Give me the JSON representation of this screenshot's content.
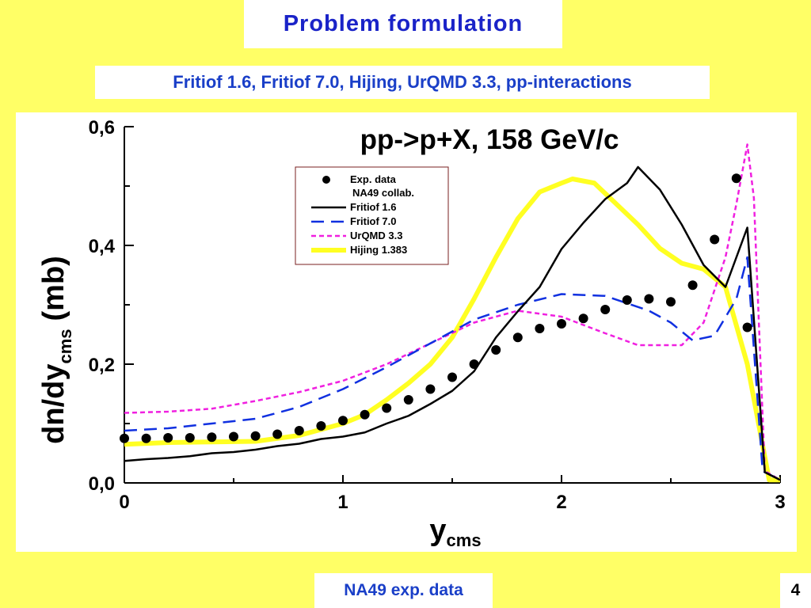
{
  "slide": {
    "title": "Problem formulation",
    "subtitle": "Fritiof 1.6, Fritiof 7.0, Hijing, UrQMD 3.3, pp-interactions",
    "footer": "NA49 exp. data",
    "page_number": "4",
    "colors": {
      "background": "#ffff66",
      "title_text": "#1a23c8",
      "panel": "#ffffff"
    }
  },
  "chart_data": {
    "type": "line",
    "title": "pp->p+X, 158 GeV/c",
    "ylabel_main": "dn/dy",
    "ylabel_sub": "cms",
    "ylabel_unit": "(mb)",
    "xlabel_main": "y",
    "xlabel_sub": "cms",
    "xlim": [
      0,
      3
    ],
    "ylim": [
      0,
      0.6
    ],
    "x_ticks": [
      0,
      1,
      2,
      3
    ],
    "x_tick_labels": [
      "0",
      "1",
      "2",
      "3"
    ],
    "y_ticks": [
      0,
      0.2,
      0.4,
      0.6
    ],
    "y_tick_labels": [
      "0,0",
      "0,2",
      "0,4",
      "0,6"
    ],
    "grid": false,
    "legend": {
      "placement": "top-left",
      "entries": [
        {
          "label": "Exp. data",
          "label2": "NA49 collab.",
          "style": "dots",
          "color": "#000000"
        },
        {
          "label": "Fritiof 1.6",
          "style": "solid",
          "color": "#000000"
        },
        {
          "label": "Fritiof 7.0",
          "style": "dash",
          "color": "#1030e0"
        },
        {
          "label": "UrQMD 3.3",
          "style": "dot",
          "color": "#f020e0"
        },
        {
          "label": "Hijing 1.383",
          "style": "thick",
          "color": "#ffff22"
        }
      ]
    },
    "scatter": {
      "name": "Exp. data",
      "points": [
        [
          0.0,
          0.075
        ],
        [
          0.1,
          0.075
        ],
        [
          0.2,
          0.076
        ],
        [
          0.3,
          0.076
        ],
        [
          0.4,
          0.077
        ],
        [
          0.5,
          0.078
        ],
        [
          0.6,
          0.079
        ],
        [
          0.7,
          0.082
        ],
        [
          0.8,
          0.088
        ],
        [
          0.9,
          0.096
        ],
        [
          1.0,
          0.105
        ],
        [
          1.1,
          0.115
        ],
        [
          1.2,
          0.126
        ],
        [
          1.3,
          0.14
        ],
        [
          1.4,
          0.158
        ],
        [
          1.5,
          0.178
        ],
        [
          1.6,
          0.2
        ],
        [
          1.7,
          0.224
        ],
        [
          1.8,
          0.245
        ],
        [
          1.9,
          0.26
        ],
        [
          2.0,
          0.268
        ],
        [
          2.1,
          0.277
        ],
        [
          2.2,
          0.292
        ],
        [
          2.3,
          0.308
        ],
        [
          2.4,
          0.31
        ],
        [
          2.5,
          0.305
        ],
        [
          2.6,
          0.333
        ],
        [
          2.7,
          0.41
        ],
        [
          2.8,
          0.513
        ],
        [
          2.85,
          0.262
        ]
      ]
    },
    "series": [
      {
        "name": "Fritiof 1.6",
        "style": "solid",
        "color": "#000000",
        "x": [
          0.0,
          0.1,
          0.2,
          0.3,
          0.4,
          0.5,
          0.6,
          0.7,
          0.8,
          0.9,
          1.0,
          1.1,
          1.2,
          1.3,
          1.4,
          1.5,
          1.6,
          1.7,
          1.8,
          1.9,
          2.0,
          2.1,
          2.2,
          2.3,
          2.35,
          2.45,
          2.55,
          2.65,
          2.75,
          2.85,
          2.93,
          3.0
        ],
        "y": [
          0.037,
          0.04,
          0.042,
          0.045,
          0.05,
          0.052,
          0.056,
          0.062,
          0.066,
          0.074,
          0.078,
          0.085,
          0.1,
          0.113,
          0.133,
          0.155,
          0.188,
          0.245,
          0.289,
          0.33,
          0.394,
          0.438,
          0.478,
          0.505,
          0.532,
          0.494,
          0.435,
          0.367,
          0.33,
          0.43,
          0.018,
          0.005
        ]
      },
      {
        "name": "Fritiof 7.0",
        "style": "dash",
        "color": "#1030e0",
        "x": [
          0.0,
          0.2,
          0.4,
          0.6,
          0.8,
          1.0,
          1.2,
          1.4,
          1.6,
          1.8,
          2.0,
          2.2,
          2.4,
          2.5,
          2.6,
          2.7,
          2.8,
          2.85,
          2.92,
          3.0
        ],
        "y": [
          0.088,
          0.092,
          0.1,
          0.108,
          0.128,
          0.158,
          0.195,
          0.235,
          0.275,
          0.3,
          0.318,
          0.315,
          0.29,
          0.27,
          0.24,
          0.248,
          0.31,
          0.38,
          0.02,
          0.005
        ]
      },
      {
        "name": "UrQMD 3.3",
        "style": "dot",
        "color": "#f020e0",
        "x": [
          0.0,
          0.2,
          0.4,
          0.6,
          0.8,
          1.0,
          1.2,
          1.4,
          1.6,
          1.8,
          2.0,
          2.2,
          2.35,
          2.55,
          2.65,
          2.75,
          2.8,
          2.85,
          2.88,
          2.93,
          3.0
        ],
        "y": [
          0.118,
          0.12,
          0.125,
          0.138,
          0.153,
          0.172,
          0.2,
          0.235,
          0.27,
          0.29,
          0.28,
          0.252,
          0.232,
          0.232,
          0.27,
          0.38,
          0.47,
          0.57,
          0.48,
          0.02,
          0.005
        ]
      },
      {
        "name": "Hijing 1.383",
        "style": "thick",
        "color": "#ffff22",
        "x": [
          0.0,
          0.2,
          0.4,
          0.6,
          0.8,
          1.0,
          1.1,
          1.2,
          1.3,
          1.4,
          1.5,
          1.6,
          1.7,
          1.8,
          1.9,
          2.0,
          2.05,
          2.15,
          2.25,
          2.35,
          2.45,
          2.55,
          2.65,
          2.75,
          2.85,
          2.95,
          3.0
        ],
        "y": [
          0.065,
          0.068,
          0.069,
          0.07,
          0.08,
          0.1,
          0.115,
          0.14,
          0.168,
          0.2,
          0.245,
          0.31,
          0.38,
          0.445,
          0.49,
          0.505,
          0.512,
          0.505,
          0.47,
          0.435,
          0.395,
          0.37,
          0.36,
          0.33,
          0.2,
          0.005,
          0.005
        ]
      }
    ]
  }
}
